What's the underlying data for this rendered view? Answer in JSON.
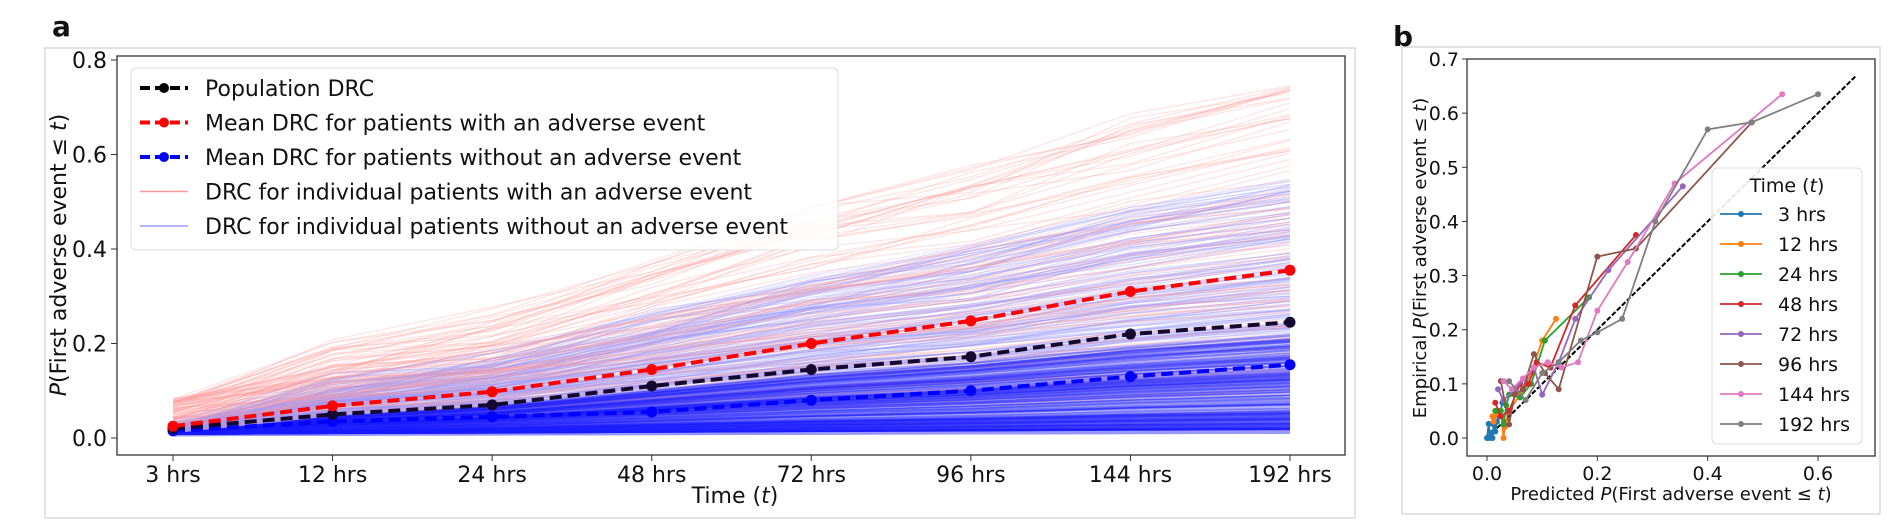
{
  "figure": {
    "panel_a_letter": "a",
    "panel_b_letter": "b"
  },
  "chart_data": [
    {
      "panel": "a",
      "type": "line",
      "title": "",
      "xlabel": "Time (t)",
      "xlabel_main": "Time (",
      "xlabel_var": "t",
      "xlabel_close": ")",
      "ylabel_prefix": "P",
      "ylabel_rest": "(First adverse event ≤ ",
      "ylabel_var": "t",
      "ylabel_close": ")",
      "ylabel": "P(First adverse event ≤ t)",
      "categories": [
        "3 hrs",
        "12 hrs",
        "24 hrs",
        "48 hrs",
        "72 hrs",
        "96 hrs",
        "144 hrs",
        "192 hrs"
      ],
      "yticks": [
        0.0,
        0.2,
        0.4,
        0.6,
        0.8
      ],
      "ytick_labels": [
        "0.0",
        "0.2",
        "0.4",
        "0.6",
        "0.8"
      ],
      "ylim": [
        -0.03,
        0.81
      ],
      "grid": false,
      "legend_position": "top-left",
      "series": [
        {
          "name": "Population DRC",
          "color": "#000000",
          "style": "dashed-marker",
          "values": [
            0.02,
            0.05,
            0.07,
            0.11,
            0.145,
            0.172,
            0.22,
            0.245
          ]
        },
        {
          "name": "Mean DRC for patients with an adverse event",
          "color": "#ff0000",
          "style": "dashed-marker",
          "values": [
            0.025,
            0.068,
            0.098,
            0.145,
            0.2,
            0.248,
            0.31,
            0.355
          ]
        },
        {
          "name": "Mean DRC for patients without an adverse event",
          "color": "#0000ff",
          "style": "dashed-marker",
          "values": [
            0.015,
            0.035,
            0.045,
            0.055,
            0.08,
            0.1,
            0.13,
            0.155
          ]
        },
        {
          "name": "DRC for individual patients with an adverse event",
          "color": "#ff9999",
          "style": "thin-line",
          "range_at_192": [
            0.08,
            0.77
          ]
        },
        {
          "name": "DRC for individual patients without an adverse event",
          "color": "#9999ff",
          "style": "thin-line",
          "range_at_192": [
            0.01,
            0.55
          ]
        }
      ]
    },
    {
      "panel": "b",
      "type": "line",
      "title": "",
      "xlabel": "Predicted P(First adverse event ≤ t)",
      "xlabel_pre": "Predicted ",
      "xlabel_p": "P",
      "xlabel_rest": "(First adverse event  ≤ ",
      "xlabel_var": "t",
      "xlabel_close": ")",
      "ylabel": "Empirical P(First adverse event ≤ t)",
      "ylabel_pre": "Empirical ",
      "ylabel_p": "P",
      "ylabel_rest": "(First adverse event  ≤ ",
      "ylabel_var": "t",
      "ylabel_close": ")",
      "xticks": [
        0.0,
        0.2,
        0.4,
        0.6
      ],
      "xtick_labels": [
        "0.0",
        "0.2",
        "0.4",
        "0.6"
      ],
      "yticks": [
        0.0,
        0.1,
        0.2,
        0.3,
        0.4,
        0.5,
        0.6,
        0.7
      ],
      "ytick_labels": [
        "0.0",
        "0.1",
        "0.2",
        "0.3",
        "0.4",
        "0.5",
        "0.6",
        "0.7"
      ],
      "xlim": [
        -0.035,
        0.7
      ],
      "ylim": [
        -0.033,
        0.7
      ],
      "grid": false,
      "legend_title_main": "Time (",
      "legend_title_var": "t",
      "legend_title_close": ")",
      "legend_position": "lower-right",
      "diagonal": {
        "from": [
          0,
          0
        ],
        "to": [
          0.67,
          0.67
        ],
        "color": "#000000",
        "style": "dashed"
      },
      "series": [
        {
          "name": "3 hrs",
          "color": "#1f77b4",
          "x": [
            0.0,
            0.003,
            0.005,
            0.008,
            0.01,
            0.012,
            0.015,
            0.018,
            0.022,
            0.028
          ],
          "y": [
            0.0,
            0.026,
            0.0,
            0.01,
            0.0,
            0.025,
            0.012,
            0.03,
            0.04,
            0.065
          ]
        },
        {
          "name": "12 hrs",
          "color": "#ff7f0e",
          "x": [
            0.01,
            0.012,
            0.018,
            0.025,
            0.03,
            0.032,
            0.04,
            0.06,
            0.08,
            0.1,
            0.125
          ],
          "y": [
            0.04,
            0.03,
            0.045,
            0.05,
            0.0,
            0.02,
            0.05,
            0.08,
            0.12,
            0.18,
            0.22
          ]
        },
        {
          "name": "24 hrs",
          "color": "#2ca02c",
          "x": [
            0.015,
            0.02,
            0.025,
            0.03,
            0.035,
            0.04,
            0.06,
            0.08,
            0.105,
            0.185
          ],
          "y": [
            0.05,
            0.05,
            0.05,
            0.025,
            0.06,
            0.08,
            0.075,
            0.1,
            0.18,
            0.26
          ]
        },
        {
          "name": "48 hrs",
          "color": "#d62728",
          "x": [
            0.015,
            0.025,
            0.04,
            0.06,
            0.065,
            0.075,
            0.09,
            0.115,
            0.16,
            0.27
          ],
          "y": [
            0.065,
            0.04,
            0.05,
            0.1,
            0.09,
            0.1,
            0.14,
            0.13,
            0.245,
            0.375
          ]
        },
        {
          "name": "72 hrs",
          "color": "#9467bd",
          "x": [
            0.02,
            0.03,
            0.05,
            0.07,
            0.085,
            0.1,
            0.13,
            0.16,
            0.22,
            0.355
          ],
          "y": [
            0.09,
            0.07,
            0.09,
            0.11,
            0.13,
            0.08,
            0.14,
            0.22,
            0.31,
            0.465
          ]
        },
        {
          "name": "96 hrs",
          "color": "#8c564b",
          "x": [
            0.025,
            0.04,
            0.05,
            0.065,
            0.085,
            0.105,
            0.13,
            0.2,
            0.27,
            0.48
          ],
          "y": [
            0.105,
            0.025,
            0.08,
            0.09,
            0.155,
            0.12,
            0.09,
            0.335,
            0.35,
            0.583
          ]
        },
        {
          "name": "144 hrs",
          "color": "#e377c2",
          "x": [
            0.03,
            0.045,
            0.065,
            0.085,
            0.11,
            0.135,
            0.165,
            0.2,
            0.255,
            0.34,
            0.535
          ],
          "y": [
            0.105,
            0.09,
            0.11,
            0.13,
            0.14,
            0.13,
            0.14,
            0.235,
            0.325,
            0.47,
            0.635
          ]
        },
        {
          "name": "192 hrs",
          "color": "#7f7f7f",
          "x": [
            0.04,
            0.07,
            0.1,
            0.13,
            0.17,
            0.2,
            0.245,
            0.305,
            0.4,
            0.48,
            0.6
          ],
          "y": [
            0.105,
            0.07,
            0.12,
            0.14,
            0.18,
            0.195,
            0.22,
            0.4,
            0.57,
            0.583,
            0.635
          ]
        }
      ]
    }
  ]
}
